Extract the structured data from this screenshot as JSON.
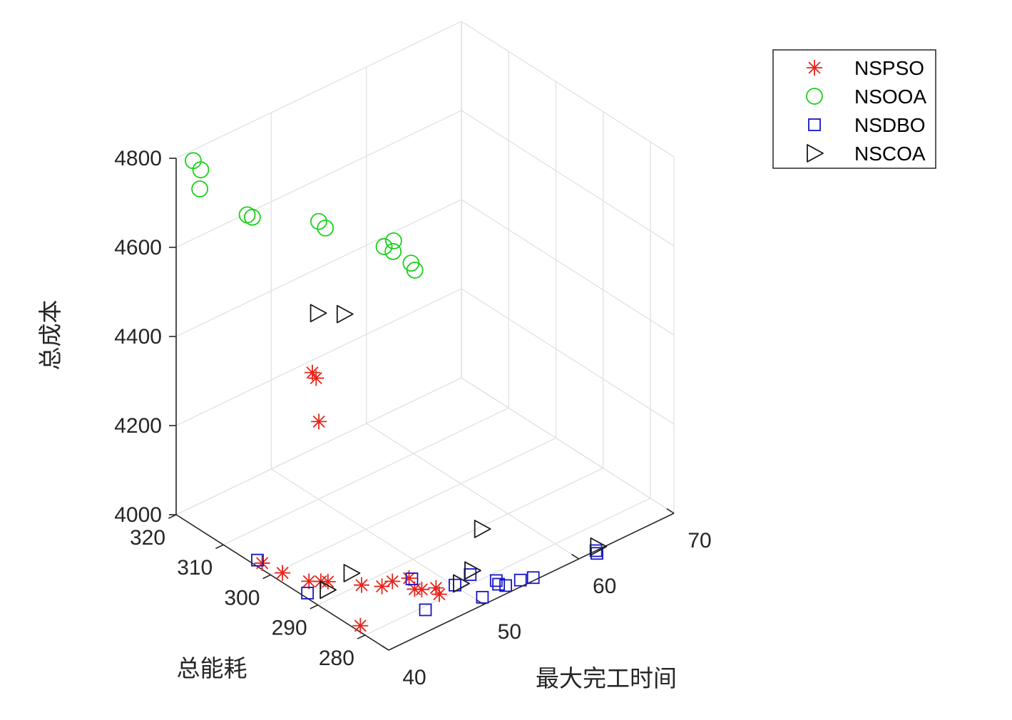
{
  "chart_data": {
    "type": "scatter3d",
    "xlabel": "最大完工时间",
    "ylabel": "总能耗",
    "zlabel": "总成本",
    "xlim": [
      40,
      70
    ],
    "ylim": [
      275,
      320
    ],
    "zlim": [
      4000,
      4800
    ],
    "xticks": [
      40,
      50,
      60,
      70
    ],
    "yticks": [
      280,
      290,
      300,
      310,
      320
    ],
    "zticks": [
      4000,
      4200,
      4400,
      4600,
      4800
    ],
    "grid": true,
    "legend_position": "top-right",
    "series": [
      {
        "name": "NSPSO",
        "marker": "asterisk",
        "color": "#e8231b",
        "points": [
          [
            42.8,
            296.8,
            4447
          ],
          [
            42.8,
            296.0,
            4440
          ],
          [
            41.6,
            293.0,
            4375
          ],
          [
            40.6,
            303.0,
            4000
          ],
          [
            40.9,
            299.3,
            4000
          ],
          [
            41.7,
            295.3,
            4000
          ],
          [
            42.4,
            294.2,
            4000
          ],
          [
            42.8,
            293.5,
            4000
          ],
          [
            44.5,
            289.8,
            4000
          ],
          [
            45.6,
            287.7,
            4000
          ],
          [
            46.7,
            287.7,
            4000
          ],
          [
            47.3,
            284.2,
            4000
          ],
          [
            48.7,
            282.5,
            4000
          ],
          [
            48.0,
            286.8,
            4000
          ],
          [
            47.7,
            283.5,
            4000
          ],
          [
            48.3,
            281.0,
            4000
          ],
          [
            40.6,
            282.2,
            4000
          ]
        ]
      },
      {
        "name": "NSOOA",
        "marker": "circle",
        "color": "#1ad11a",
        "points": [
          [
            40.8,
            318.0,
            4800
          ],
          [
            40.6,
            316.0,
            4795
          ],
          [
            40.0,
            315.0,
            4765
          ],
          [
            42.5,
            310.0,
            4715
          ],
          [
            42.8,
            309.5,
            4710
          ],
          [
            46.8,
            303.5,
            4700
          ],
          [
            47.0,
            302.5,
            4690
          ],
          [
            50.3,
            294.7,
            4680
          ],
          [
            49.4,
            294.9,
            4675
          ],
          [
            49.9,
            294.0,
            4665
          ],
          [
            50.3,
            291.0,
            4655
          ],
          [
            50.5,
            290.6,
            4640
          ]
        ]
      },
      {
        "name": "NSDBO",
        "marker": "square",
        "color": "#1515c8",
        "points": [
          [
            40.5,
            293.2,
            4000
          ],
          [
            40.6,
            304.0,
            4000
          ],
          [
            48.1,
            286.4,
            4000
          ],
          [
            50.1,
            281.3,
            4000
          ],
          [
            52.0,
            281.9,
            4000
          ],
          [
            52.8,
            277.5,
            4000
          ],
          [
            46.0,
            279.3,
            4000
          ],
          [
            50.6,
            276.5,
            4000
          ],
          [
            53.0,
            278.4,
            4000
          ],
          [
            54.5,
            276.3,
            4000
          ],
          [
            55.5,
            275.6,
            4000
          ],
          [
            61.8,
            275.0,
            4000
          ],
          [
            61.6,
            274.4,
            4000
          ],
          [
            53.1,
            276.6,
            4000
          ]
        ]
      },
      {
        "name": "NSCOA",
        "marker": "triangle-right",
        "color": "#1a1a1a",
        "points": [
          [
            46.5,
            303.1,
            4500
          ],
          [
            48.0,
            300.5,
            4500
          ],
          [
            42.0,
            292.0,
            4000
          ],
          [
            45.0,
            293.0,
            4000
          ],
          [
            52.5,
            282.5,
            4000
          ],
          [
            57.0,
            289.5,
            4000
          ],
          [
            50.6,
            281.1,
            4000
          ],
          [
            62.3,
            275.6,
            4000
          ]
        ]
      }
    ]
  }
}
